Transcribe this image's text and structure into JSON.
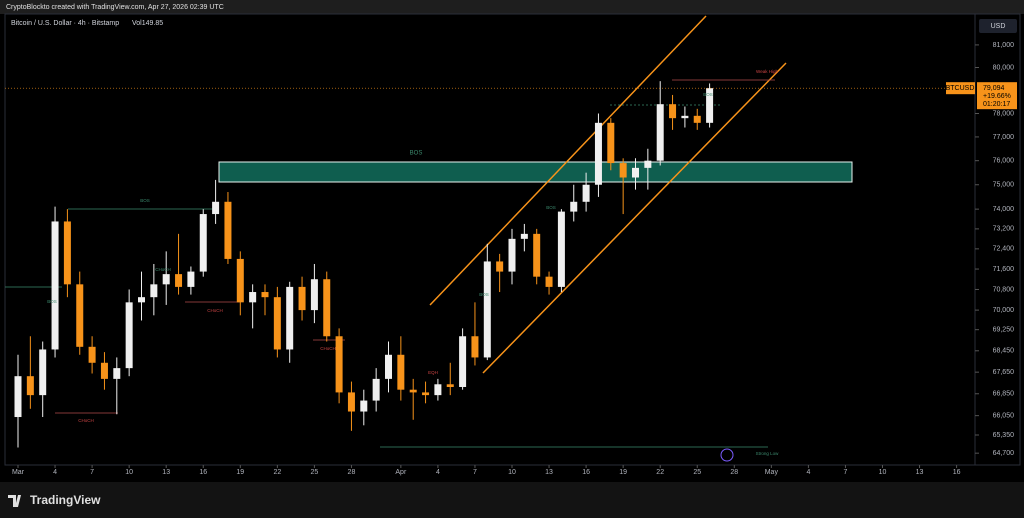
{
  "header": {
    "credit": "CryptoBlockto created with TradingView.com, Apr 27, 2026 02:39 UTC"
  },
  "footer": {
    "brand": "TradingView"
  },
  "chart_data": {
    "type": "candlestick",
    "title": "Bitcoin / U.S. Dollar · 4h · Bitstamp",
    "volume_label": "Vol149.85",
    "currency": "USD",
    "symbol": "BTCUSD",
    "last_price": 79094,
    "last_price_label": "79,094",
    "change_label": "+19.66%",
    "countdown": "01:20:17",
    "log_scale": true,
    "up_color": "#f0f0f0",
    "down_color": "#f7931a",
    "ylim": [
      64280,
      82390
    ],
    "yticks": [
      {
        "value": 64700,
        "label": "64,700"
      },
      {
        "value": 65350,
        "label": "65,350"
      },
      {
        "value": 66050,
        "label": "66,050"
      },
      {
        "value": 66850,
        "label": "66,850"
      },
      {
        "value": 67650,
        "label": "67,650"
      },
      {
        "value": 68450,
        "label": "68,450"
      },
      {
        "value": 69250,
        "label": "69,250"
      },
      {
        "value": 70000,
        "label": "70,000"
      },
      {
        "value": 70800,
        "label": "70,800"
      },
      {
        "value": 71600,
        "label": "71,600"
      },
      {
        "value": 72400,
        "label": "72,400"
      },
      {
        "value": 73200,
        "label": "73,200"
      },
      {
        "value": 74000,
        "label": "74,000"
      },
      {
        "value": 75000,
        "label": "75,000"
      },
      {
        "value": 76000,
        "label": "76,000"
      },
      {
        "value": 77000,
        "label": "77,000"
      },
      {
        "value": 78000,
        "label": "78,000"
      },
      {
        "value": 80000,
        "label": "80,000"
      },
      {
        "value": 81000,
        "label": "81,000"
      }
    ],
    "xticks": [
      {
        "value": "Mar 1",
        "label": "Mar"
      },
      {
        "value": "Mar 4",
        "label": "4"
      },
      {
        "value": "Mar 7",
        "label": "7"
      },
      {
        "value": "Mar 10",
        "label": "10"
      },
      {
        "value": "Mar 13",
        "label": "13"
      },
      {
        "value": "Mar 16",
        "label": "16"
      },
      {
        "value": "Mar 19",
        "label": "19"
      },
      {
        "value": "Mar 22",
        "label": "22"
      },
      {
        "value": "Mar 25",
        "label": "25"
      },
      {
        "value": "Mar 28",
        "label": "28"
      },
      {
        "value": "Apr 1",
        "label": "Apr"
      },
      {
        "value": "Apr 4",
        "label": "4"
      },
      {
        "value": "Apr 7",
        "label": "7"
      },
      {
        "value": "Apr 10",
        "label": "10"
      },
      {
        "value": "Apr 13",
        "label": "13"
      },
      {
        "value": "Apr 16",
        "label": "16"
      },
      {
        "value": "Apr 19",
        "label": "19"
      },
      {
        "value": "Apr 22",
        "label": "22"
      },
      {
        "value": "Apr 25",
        "label": "25"
      },
      {
        "value": "Apr 28",
        "label": "28"
      },
      {
        "value": "May 1",
        "label": "May"
      },
      {
        "value": "May 4",
        "label": "4"
      },
      {
        "value": "May 7",
        "label": "7"
      },
      {
        "value": "May 10",
        "label": "10"
      },
      {
        "value": "May 13",
        "label": "13"
      },
      {
        "value": "May 16",
        "label": "16"
      }
    ],
    "x": [
      "Mar 1",
      "Mar 2",
      "Mar 3",
      "Mar 4",
      "Mar 5",
      "Mar 6",
      "Mar 7",
      "Mar 8",
      "Mar 9",
      "Mar 10",
      "Mar 11",
      "Mar 12",
      "Mar 13",
      "Mar 14",
      "Mar 15",
      "Mar 16",
      "Mar 17",
      "Mar 18",
      "Mar 19",
      "Mar 20",
      "Mar 21",
      "Mar 22",
      "Mar 23",
      "Mar 24",
      "Mar 25",
      "Mar 26",
      "Mar 27",
      "Mar 28",
      "Mar 29",
      "Mar 30",
      "Mar 31",
      "Apr 1",
      "Apr 2",
      "Apr 3",
      "Apr 4",
      "Apr 5",
      "Apr 6",
      "Apr 7",
      "Apr 8",
      "Apr 9",
      "Apr 10",
      "Apr 11",
      "Apr 12",
      "Apr 13",
      "Apr 14",
      "Apr 15",
      "Apr 16",
      "Apr 17",
      "Apr 18",
      "Apr 19",
      "Apr 20",
      "Apr 21",
      "Apr 22",
      "Apr 23",
      "Apr 24",
      "Apr 25",
      "Apr 26"
    ],
    "open": [
      66000,
      67500,
      66800,
      68500,
      73500,
      71000,
      68600,
      68000,
      67400,
      67800,
      70300,
      70500,
      71000,
      71400,
      70900,
      71500,
      73800,
      74300,
      72000,
      70300,
      70700,
      70500,
      68500,
      70900,
      70000,
      71200,
      69000,
      66900,
      66200,
      66600,
      67400,
      68300,
      67000,
      66900,
      66800,
      67200,
      67100,
      69000,
      68200,
      71900,
      71500,
      72800,
      73000,
      71300,
      70900,
      73900,
      74300,
      75000,
      77600,
      75900,
      75300,
      75700,
      76000,
      78400,
      77800,
      77900,
      77600
    ],
    "high": [
      68300,
      69000,
      68800,
      74100,
      74000,
      71500,
      69000,
      68400,
      68200,
      70800,
      71500,
      71800,
      72300,
      73000,
      71700,
      74000,
      75200,
      74700,
      72300,
      71000,
      71000,
      70900,
      71100,
      71300,
      71800,
      71500,
      69300,
      67300,
      67000,
      67800,
      68800,
      69000,
      67400,
      67300,
      67400,
      68000,
      69300,
      70300,
      72600,
      72200,
      73200,
      73400,
      73200,
      71500,
      74000,
      75000,
      75500,
      78000,
      77800,
      76100,
      76100,
      76500,
      79400,
      78800,
      78300,
      78200,
      79300
    ],
    "low": [
      64900,
      66300,
      66000,
      68200,
      70500,
      68300,
      67600,
      67000,
      66100,
      67500,
      69600,
      69800,
      70200,
      70600,
      70600,
      71300,
      73400,
      71800,
      69800,
      69300,
      69800,
      68200,
      68000,
      69600,
      69500,
      68800,
      66500,
      65500,
      65700,
      66200,
      66900,
      66600,
      65900,
      66500,
      66600,
      66800,
      67000,
      67900,
      68100,
      70700,
      71000,
      72300,
      71000,
      70600,
      70700,
      73500,
      73900,
      74500,
      75600,
      73800,
      74800,
      74800,
      75800,
      77300,
      77400,
      77300,
      77400
    ],
    "close": [
      67500,
      66800,
      68500,
      73500,
      71000,
      68600,
      68000,
      67400,
      67800,
      70300,
      70500,
      71000,
      71400,
      70900,
      71500,
      73800,
      74300,
      72000,
      70300,
      70700,
      70500,
      68500,
      70900,
      70000,
      71200,
      69000,
      66900,
      66200,
      66600,
      67400,
      68300,
      67000,
      66900,
      66800,
      67200,
      67100,
      69000,
      68200,
      71900,
      71500,
      72800,
      73000,
      71300,
      70900,
      73900,
      74300,
      75000,
      77600,
      75900,
      75300,
      75700,
      76000,
      78400,
      77800,
      77900,
      77600,
      79094
    ],
    "annotations": [
      "BOS",
      "BOS",
      "BOS",
      "BOS",
      "BOS",
      "BOS",
      "CHoCH",
      "CHoCH",
      "CHoCH",
      "CHoCH",
      "EQH",
      "Weak High",
      "Strong Low"
    ]
  }
}
